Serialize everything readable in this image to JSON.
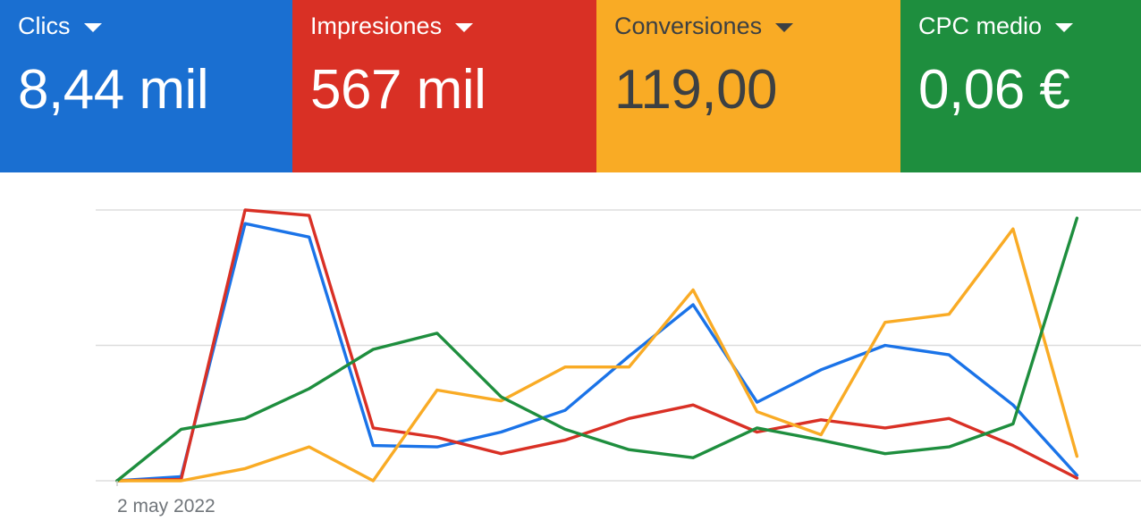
{
  "cards": [
    {
      "label": "Clics",
      "value": "8,44 mil",
      "color": "#1a6fd1",
      "text_color": "#ffffff"
    },
    {
      "label": "Impresiones",
      "value": "567 mil",
      "color": "#d93025",
      "text_color": "#ffffff"
    },
    {
      "label": "Conversiones",
      "value": "119,00",
      "color": "#f9ab25",
      "text_color": "#3c4043"
    },
    {
      "label": "CPC medio",
      "value": "0,06 €",
      "color": "#1e8e3e",
      "text_color": "#ffffff"
    }
  ],
  "chart_data": {
    "type": "line",
    "title": "",
    "xlabel": "",
    "ylabel": "",
    "x_tick_labels": [
      "2 may 2022"
    ],
    "grid": true,
    "ylim": [
      0,
      100
    ],
    "legend": "cards-above",
    "x": [
      1,
      2,
      3,
      4,
      5,
      6,
      7,
      8,
      9,
      10,
      11,
      12,
      13,
      14,
      15,
      16,
      17
    ],
    "series": [
      {
        "name": "Clics",
        "color": "#1a73e8",
        "values": [
          0,
          1.5,
          95,
          90,
          13,
          12.5,
          18,
          26,
          46,
          65,
          29,
          41,
          50,
          46.5,
          28,
          2,
          null
        ]
      },
      {
        "name": "Impresiones",
        "color": "#d93025",
        "values": [
          0,
          0.5,
          100,
          98,
          19.5,
          16,
          10,
          15,
          23,
          28,
          18,
          22.5,
          19.5,
          23,
          13,
          1,
          null
        ]
      },
      {
        "name": "Conversiones",
        "color": "#f9ab25",
        "values": [
          0,
          0,
          4.5,
          12.5,
          0,
          33.5,
          29.5,
          42,
          42,
          70.5,
          25.5,
          17,
          58.5,
          61.5,
          93,
          9,
          null
        ]
      },
      {
        "name": "CPC medio",
        "color": "#1e8e3e",
        "values": [
          0,
          19,
          23,
          34,
          48.5,
          54.5,
          31,
          19,
          11.5,
          8.5,
          19.5,
          15,
          10,
          12.5,
          21,
          97,
          null
        ]
      }
    ]
  }
}
